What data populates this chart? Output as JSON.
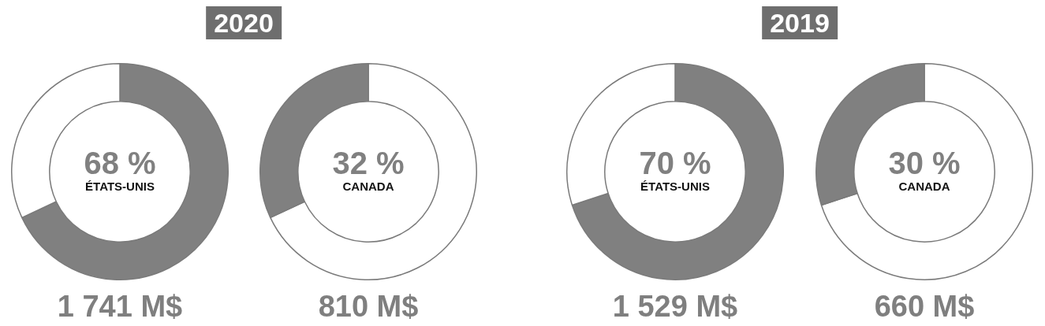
{
  "chart_data": [
    {
      "type": "donut",
      "title": "2020",
      "categories": [
        "ÉTATS-UNIS",
        null
      ],
      "values": [
        68,
        32
      ],
      "colors": [
        "#808080",
        "#ffffff"
      ],
      "value_labels": [
        "68 %",
        null
      ],
      "annotations": [
        "1 741 M$"
      ]
    },
    {
      "type": "donut",
      "categories": [
        null,
        "CANADA"
      ],
      "values": [
        68,
        32
      ],
      "colors": [
        "#ffffff",
        "#808080"
      ],
      "value_labels": [
        null,
        "32 %"
      ],
      "annotations": [
        "810 M$"
      ]
    },
    {
      "type": "donut",
      "title": "2019",
      "categories": [
        "ÉTATS-UNIS",
        null
      ],
      "values": [
        70,
        30
      ],
      "colors": [
        "#808080",
        "#ffffff"
      ],
      "value_labels": [
        "70 %",
        null
      ],
      "annotations": [
        "1 529 M$"
      ]
    },
    {
      "type": "donut",
      "categories": [
        null,
        "CANADA"
      ],
      "values": [
        70,
        30
      ],
      "colors": [
        "#ffffff",
        "#808080"
      ],
      "value_labels": [
        null,
        "30 %"
      ],
      "annotations": [
        "660 M$"
      ]
    }
  ]
}
